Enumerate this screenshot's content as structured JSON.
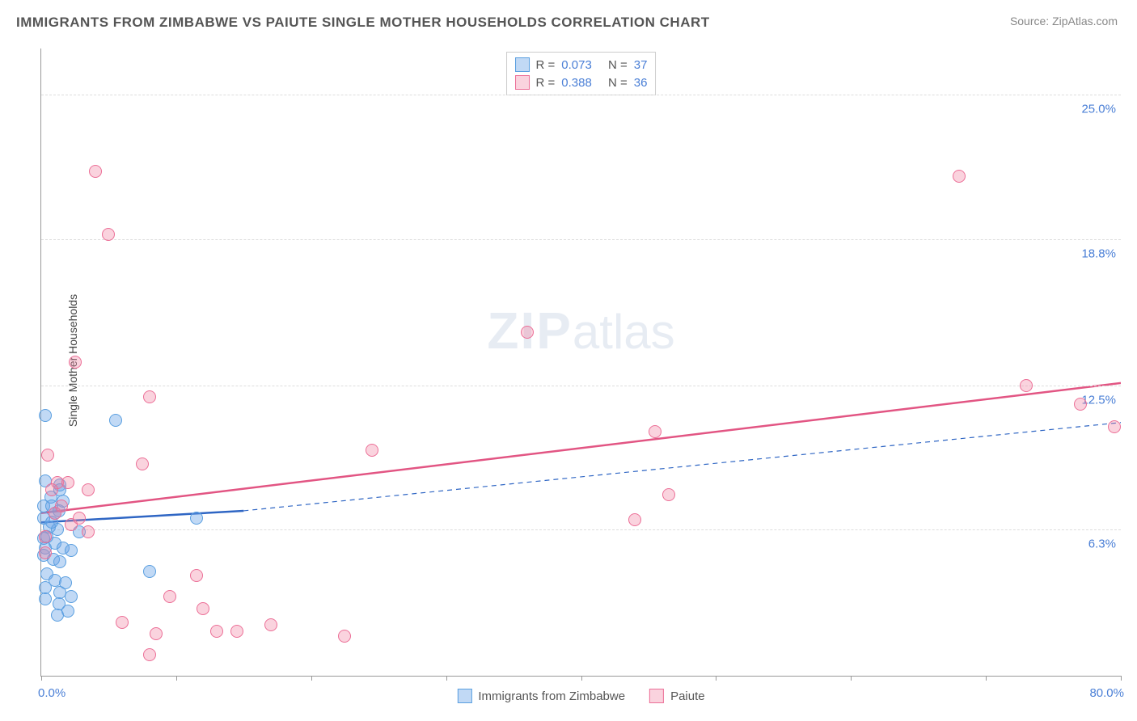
{
  "chart": {
    "type": "scatter",
    "title": "IMMIGRANTS FROM ZIMBABWE VS PAIUTE SINGLE MOTHER HOUSEHOLDS CORRELATION CHART",
    "source_label": "Source: ZipAtlas.com",
    "ylabel": "Single Mother Households",
    "watermark": "ZIPatlas",
    "xlim": [
      0.0,
      80.0
    ],
    "ylim": [
      0.0,
      27.0
    ],
    "x_tick_positions": [
      0,
      10,
      20,
      30,
      40,
      50,
      60,
      70,
      80
    ],
    "x_tick_labels_shown": {
      "min": "0.0%",
      "max": "80.0%"
    },
    "y_gridlines": [
      6.3,
      12.5,
      18.8,
      25.0
    ],
    "y_tick_labels": [
      "6.3%",
      "12.5%",
      "18.8%",
      "25.0%"
    ],
    "background_color": "#ffffff",
    "grid_color": "#dddddd",
    "axis_color": "#999999",
    "tick_label_color": "#4a7fd6",
    "title_color": "#555555",
    "title_fontsize": 17,
    "label_fontsize": 14,
    "point_radius": 8,
    "series": [
      {
        "name": "Immigrants from Zimbabwe",
        "key": "a",
        "fill_color": "rgba(99,160,230,0.4)",
        "stroke_color": "#5a9fe0",
        "R": "0.073",
        "N": "37",
        "trendline": {
          "x1": 0,
          "y1": 6.6,
          "x2": 15,
          "y2": 7.1,
          "width": 2.5,
          "dash": "none",
          "color": "#2f66c4"
        },
        "trendline_ext": {
          "x1": 15,
          "y1": 7.1,
          "x2": 80,
          "y2": 10.9,
          "width": 1.2,
          "dash": "6,5",
          "color": "#2f66c4"
        },
        "points": [
          [
            0.3,
            11.2
          ],
          [
            5.5,
            11.0
          ],
          [
            1.4,
            8.2
          ],
          [
            0.3,
            8.4
          ],
          [
            1.4,
            8.0
          ],
          [
            0.7,
            7.7
          ],
          [
            1.6,
            7.5
          ],
          [
            0.2,
            7.3
          ],
          [
            0.8,
            7.3
          ],
          [
            1.3,
            7.1
          ],
          [
            0.2,
            6.8
          ],
          [
            11.5,
            6.8
          ],
          [
            0.6,
            6.4
          ],
          [
            1.2,
            6.3
          ],
          [
            2.8,
            6.2
          ],
          [
            0.2,
            5.9
          ],
          [
            1.0,
            5.7
          ],
          [
            0.3,
            5.5
          ],
          [
            1.6,
            5.5
          ],
          [
            2.2,
            5.4
          ],
          [
            0.2,
            5.2
          ],
          [
            0.9,
            5.0
          ],
          [
            1.4,
            4.9
          ],
          [
            8.0,
            4.5
          ],
          [
            0.4,
            4.4
          ],
          [
            1.0,
            4.1
          ],
          [
            1.8,
            4.0
          ],
          [
            0.3,
            3.8
          ],
          [
            1.4,
            3.6
          ],
          [
            2.2,
            3.4
          ],
          [
            0.3,
            3.3
          ],
          [
            1.3,
            3.1
          ],
          [
            2.0,
            2.8
          ],
          [
            1.2,
            2.6
          ],
          [
            0.4,
            6.0
          ],
          [
            0.8,
            6.6
          ],
          [
            1.0,
            7.0
          ]
        ]
      },
      {
        "name": "Paiute",
        "key": "b",
        "fill_color": "rgba(240,128,160,0.35)",
        "stroke_color": "#ec6f97",
        "R": "0.388",
        "N": "36",
        "trendline": {
          "x1": 0,
          "y1": 7.0,
          "x2": 80,
          "y2": 12.6,
          "width": 2.5,
          "dash": "none",
          "color": "#e25583"
        },
        "points": [
          [
            4.0,
            21.7
          ],
          [
            68.0,
            21.5
          ],
          [
            5.0,
            19.0
          ],
          [
            36.0,
            14.8
          ],
          [
            2.5,
            13.5
          ],
          [
            73.0,
            12.5
          ],
          [
            8.0,
            12.0
          ],
          [
            77.0,
            11.7
          ],
          [
            79.5,
            10.7
          ],
          [
            45.5,
            10.5
          ],
          [
            24.5,
            9.7
          ],
          [
            0.5,
            9.5
          ],
          [
            1.2,
            8.3
          ],
          [
            2.0,
            8.3
          ],
          [
            7.5,
            9.1
          ],
          [
            46.5,
            7.8
          ],
          [
            44.0,
            6.7
          ],
          [
            1.0,
            7.0
          ],
          [
            2.2,
            6.5
          ],
          [
            3.5,
            6.2
          ],
          [
            0.3,
            5.3
          ],
          [
            11.5,
            4.3
          ],
          [
            9.5,
            3.4
          ],
          [
            12.0,
            2.9
          ],
          [
            6.0,
            2.3
          ],
          [
            8.5,
            1.8
          ],
          [
            13.0,
            1.9
          ],
          [
            14.5,
            1.9
          ],
          [
            17.0,
            2.2
          ],
          [
            22.5,
            1.7
          ],
          [
            8.0,
            0.9
          ],
          [
            3.5,
            8.0
          ],
          [
            0.8,
            8.0
          ],
          [
            1.5,
            7.3
          ],
          [
            2.8,
            6.8
          ],
          [
            0.3,
            6.0
          ]
        ]
      }
    ],
    "legend_top": {
      "rows": [
        {
          "swatch": "a",
          "r_label": "R =",
          "r_val": "0.073",
          "n_label": "N =",
          "n_val": "37"
        },
        {
          "swatch": "b",
          "r_label": "R =",
          "r_val": "0.388",
          "n_label": "N =",
          "n_val": "36"
        }
      ]
    },
    "legend_bottom": {
      "items": [
        {
          "swatch": "a",
          "label": "Immigrants from Zimbabwe"
        },
        {
          "swatch": "b",
          "label": "Paiute"
        }
      ]
    }
  }
}
